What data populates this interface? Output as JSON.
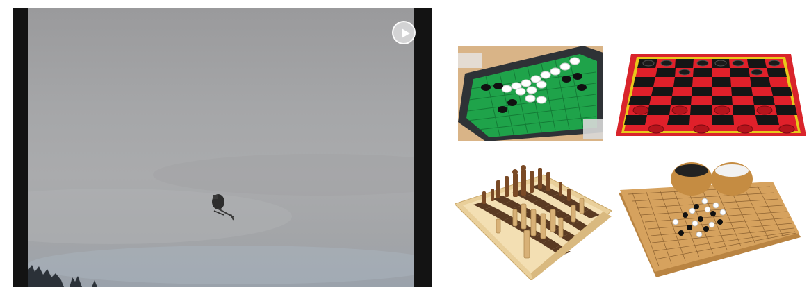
{
  "video": {
    "play_button_icon": "play-icon",
    "subject": "helicopter-icon"
  },
  "thumbnails": [
    {
      "name": "othello-board",
      "icon": "othello-icon"
    },
    {
      "name": "checkers-board",
      "icon": "checkers-icon"
    },
    {
      "name": "chess-board",
      "icon": "chess-icon"
    },
    {
      "name": "go-board",
      "icon": "go-icon"
    }
  ],
  "colors": {
    "othello_green": "#1fa34a",
    "checkers_red": "#e0202a",
    "checkers_black": "#151515",
    "wood_light": "#e9cf9a",
    "go_wood": "#d6a25e",
    "sky": "#a6a7a9"
  }
}
